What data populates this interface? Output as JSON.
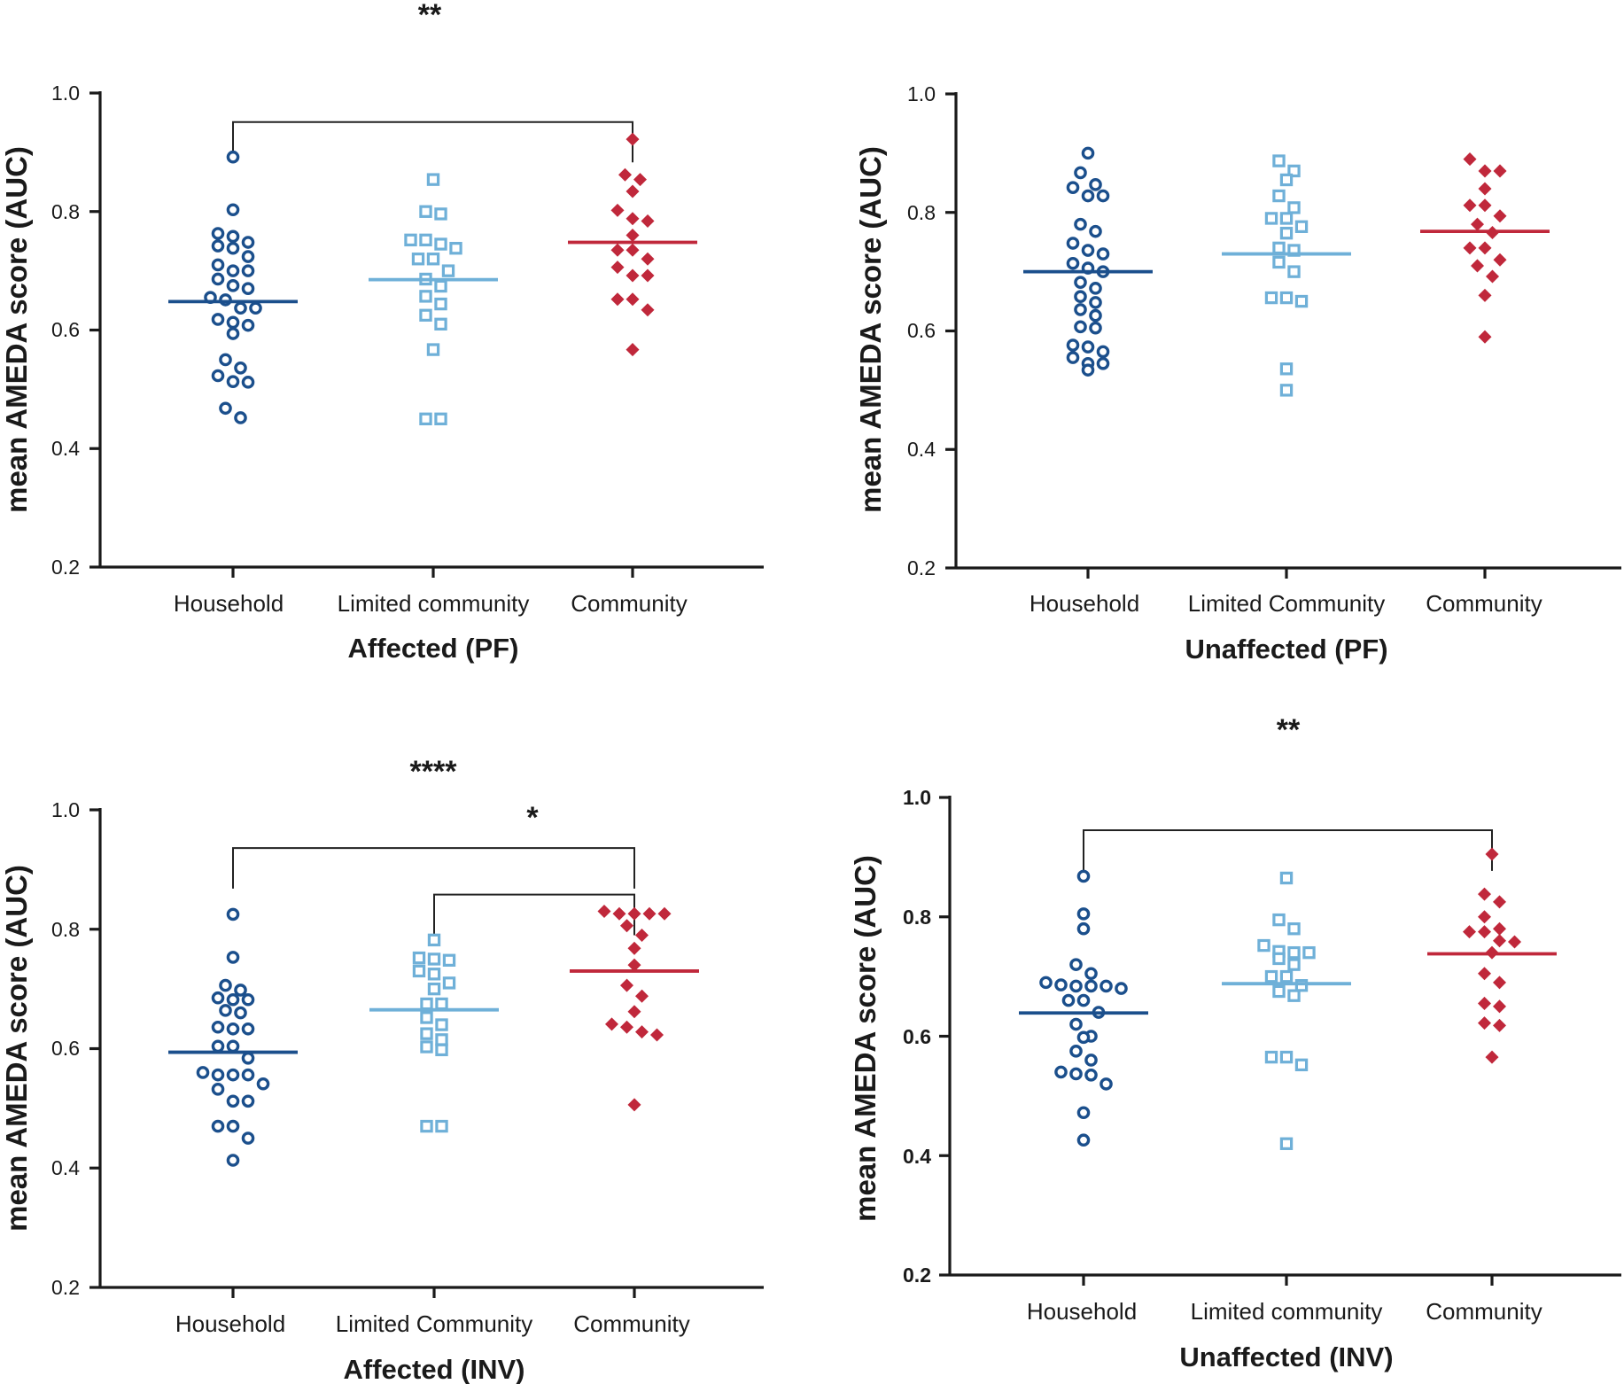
{
  "colors": {
    "household": "#1b4f8c",
    "limited": "#6fb0d8",
    "community": "#c0283b",
    "axis": "#1a1a1a"
  },
  "chart_data": [
    {
      "type": "scatter",
      "id": "affected-pf",
      "xlabel": "Affected (PF)",
      "ylabel": "mean AMEDA score (AUC)",
      "ylim": [
        0.2,
        1.0
      ],
      "yticks": [
        "0.2",
        "0.4",
        "0.6",
        "0.8",
        "1.0"
      ],
      "categories": [
        "Household",
        "Limited community",
        "Community"
      ],
      "series": [
        {
          "name": "Household",
          "marker": "circle",
          "mean": 0.648,
          "values": [
            0.892,
            0.803,
            0.763,
            0.758,
            0.748,
            0.742,
            0.738,
            0.724,
            0.71,
            0.7,
            0.7,
            0.686,
            0.675,
            0.67,
            0.655,
            0.651,
            0.637,
            0.637,
            0.618,
            0.613,
            0.608,
            0.594,
            0.55,
            0.536,
            0.523,
            0.513,
            0.512,
            0.468,
            0.452
          ]
        },
        {
          "name": "Limited community",
          "marker": "square",
          "mean": 0.685,
          "values": [
            0.854,
            0.8,
            0.796,
            0.752,
            0.752,
            0.745,
            0.738,
            0.72,
            0.72,
            0.7,
            0.686,
            0.674,
            0.657,
            0.644,
            0.625,
            0.61,
            0.567,
            0.45,
            0.45
          ]
        },
        {
          "name": "Community",
          "marker": "diamond",
          "mean": 0.748,
          "values": [
            0.922,
            0.862,
            0.854,
            0.834,
            0.802,
            0.788,
            0.784,
            0.76,
            0.735,
            0.735,
            0.72,
            0.706,
            0.692,
            0.692,
            0.652,
            0.652,
            0.634,
            0.567
          ]
        }
      ],
      "significance": [
        {
          "from": 0,
          "to": 2,
          "label": "**",
          "level": 0.951
        }
      ]
    },
    {
      "type": "scatter",
      "id": "unaffected-pf",
      "xlabel": "Unaffected (PF)",
      "ylabel": "mean AMEDA score (AUC)",
      "ylim": [
        0.2,
        1.0
      ],
      "yticks": [
        "0.2",
        "0.4",
        "0.6",
        "0.8",
        "1.0"
      ],
      "categories": [
        "Household",
        "Limited Community",
        "Community"
      ],
      "series": [
        {
          "name": "Household",
          "marker": "circle",
          "mean": 0.7,
          "values": [
            0.9,
            0.867,
            0.847,
            0.842,
            0.828,
            0.828,
            0.78,
            0.768,
            0.748,
            0.736,
            0.73,
            0.714,
            0.706,
            0.7,
            0.682,
            0.672,
            0.658,
            0.648,
            0.636,
            0.626,
            0.607,
            0.605,
            0.576,
            0.573,
            0.565,
            0.555,
            0.545,
            0.545,
            0.534
          ]
        },
        {
          "name": "Limited Community",
          "marker": "square",
          "mean": 0.73,
          "values": [
            0.887,
            0.87,
            0.855,
            0.828,
            0.808,
            0.79,
            0.79,
            0.776,
            0.765,
            0.74,
            0.736,
            0.716,
            0.7,
            0.656,
            0.656,
            0.65,
            0.536,
            0.5
          ]
        },
        {
          "name": "Community",
          "marker": "diamond",
          "mean": 0.768,
          "values": [
            0.89,
            0.87,
            0.87,
            0.84,
            0.812,
            0.812,
            0.794,
            0.78,
            0.766,
            0.74,
            0.74,
            0.72,
            0.71,
            0.692,
            0.66,
            0.59
          ]
        }
      ],
      "significance": []
    },
    {
      "type": "scatter",
      "id": "affected-inv",
      "xlabel": "Affected (INV)",
      "ylabel": "mean AMEDA score (AUC)",
      "ylim": [
        0.2,
        1.0
      ],
      "yticks": [
        "0.2",
        "0.4",
        "0.6",
        "0.8",
        "1.0"
      ],
      "categories": [
        "Household",
        "Limited Community",
        "Community"
      ],
      "series": [
        {
          "name": "Household",
          "marker": "circle",
          "mean": 0.594,
          "values": [
            0.825,
            0.753,
            0.706,
            0.698,
            0.685,
            0.682,
            0.682,
            0.664,
            0.66,
            0.636,
            0.633,
            0.633,
            0.604,
            0.604,
            0.584,
            0.56,
            0.556,
            0.556,
            0.556,
            0.541,
            0.532,
            0.512,
            0.512,
            0.47,
            0.47,
            0.45,
            0.413
          ]
        },
        {
          "name": "Limited Community",
          "marker": "square",
          "mean": 0.665,
          "values": [
            0.782,
            0.752,
            0.75,
            0.748,
            0.73,
            0.725,
            0.71,
            0.7,
            0.675,
            0.675,
            0.652,
            0.64,
            0.625,
            0.615,
            0.603,
            0.598,
            0.47,
            0.47
          ]
        },
        {
          "name": "Community",
          "marker": "diamond",
          "mean": 0.73,
          "values": [
            0.83,
            0.826,
            0.826,
            0.826,
            0.826,
            0.806,
            0.79,
            0.768,
            0.74,
            0.706,
            0.688,
            0.662,
            0.641,
            0.636,
            0.628,
            0.623,
            0.506
          ]
        }
      ],
      "significance": [
        {
          "from": 0,
          "to": 2,
          "label": "****",
          "level": 0.936
        },
        {
          "from": 1,
          "to": 2,
          "label": "*",
          "level": 0.858
        }
      ]
    },
    {
      "type": "scatter",
      "id": "unaffected-inv",
      "xlabel": "Unaffected (INV)",
      "ylabel": "mean AMEDA score (AUC)",
      "ylim": [
        0.2,
        1.0
      ],
      "yticks": [
        "0.2",
        "0.4",
        "0.6",
        "0.8",
        "1.0"
      ],
      "categories": [
        "Household",
        "Limited community",
        "Community"
      ],
      "series": [
        {
          "name": "Household",
          "marker": "circle",
          "mean": 0.639,
          "values": [
            0.868,
            0.805,
            0.78,
            0.72,
            0.705,
            0.69,
            0.686,
            0.684,
            0.684,
            0.684,
            0.68,
            0.66,
            0.66,
            0.64,
            0.62,
            0.6,
            0.598,
            0.575,
            0.56,
            0.54,
            0.537,
            0.535,
            0.52,
            0.472,
            0.426
          ]
        },
        {
          "name": "Limited community",
          "marker": "square",
          "mean": 0.688,
          "values": [
            0.865,
            0.795,
            0.78,
            0.752,
            0.742,
            0.74,
            0.74,
            0.73,
            0.72,
            0.7,
            0.7,
            0.685,
            0.675,
            0.668,
            0.565,
            0.565,
            0.552,
            0.42
          ]
        },
        {
          "name": "Community",
          "marker": "diamond",
          "mean": 0.738,
          "values": [
            0.905,
            0.838,
            0.825,
            0.8,
            0.78,
            0.775,
            0.775,
            0.76,
            0.758,
            0.74,
            0.705,
            0.69,
            0.655,
            0.65,
            0.622,
            0.618,
            0.565
          ]
        }
      ],
      "significance": [
        {
          "from": 0,
          "to": 2,
          "label": "**",
          "level": 0.945
        }
      ]
    }
  ]
}
